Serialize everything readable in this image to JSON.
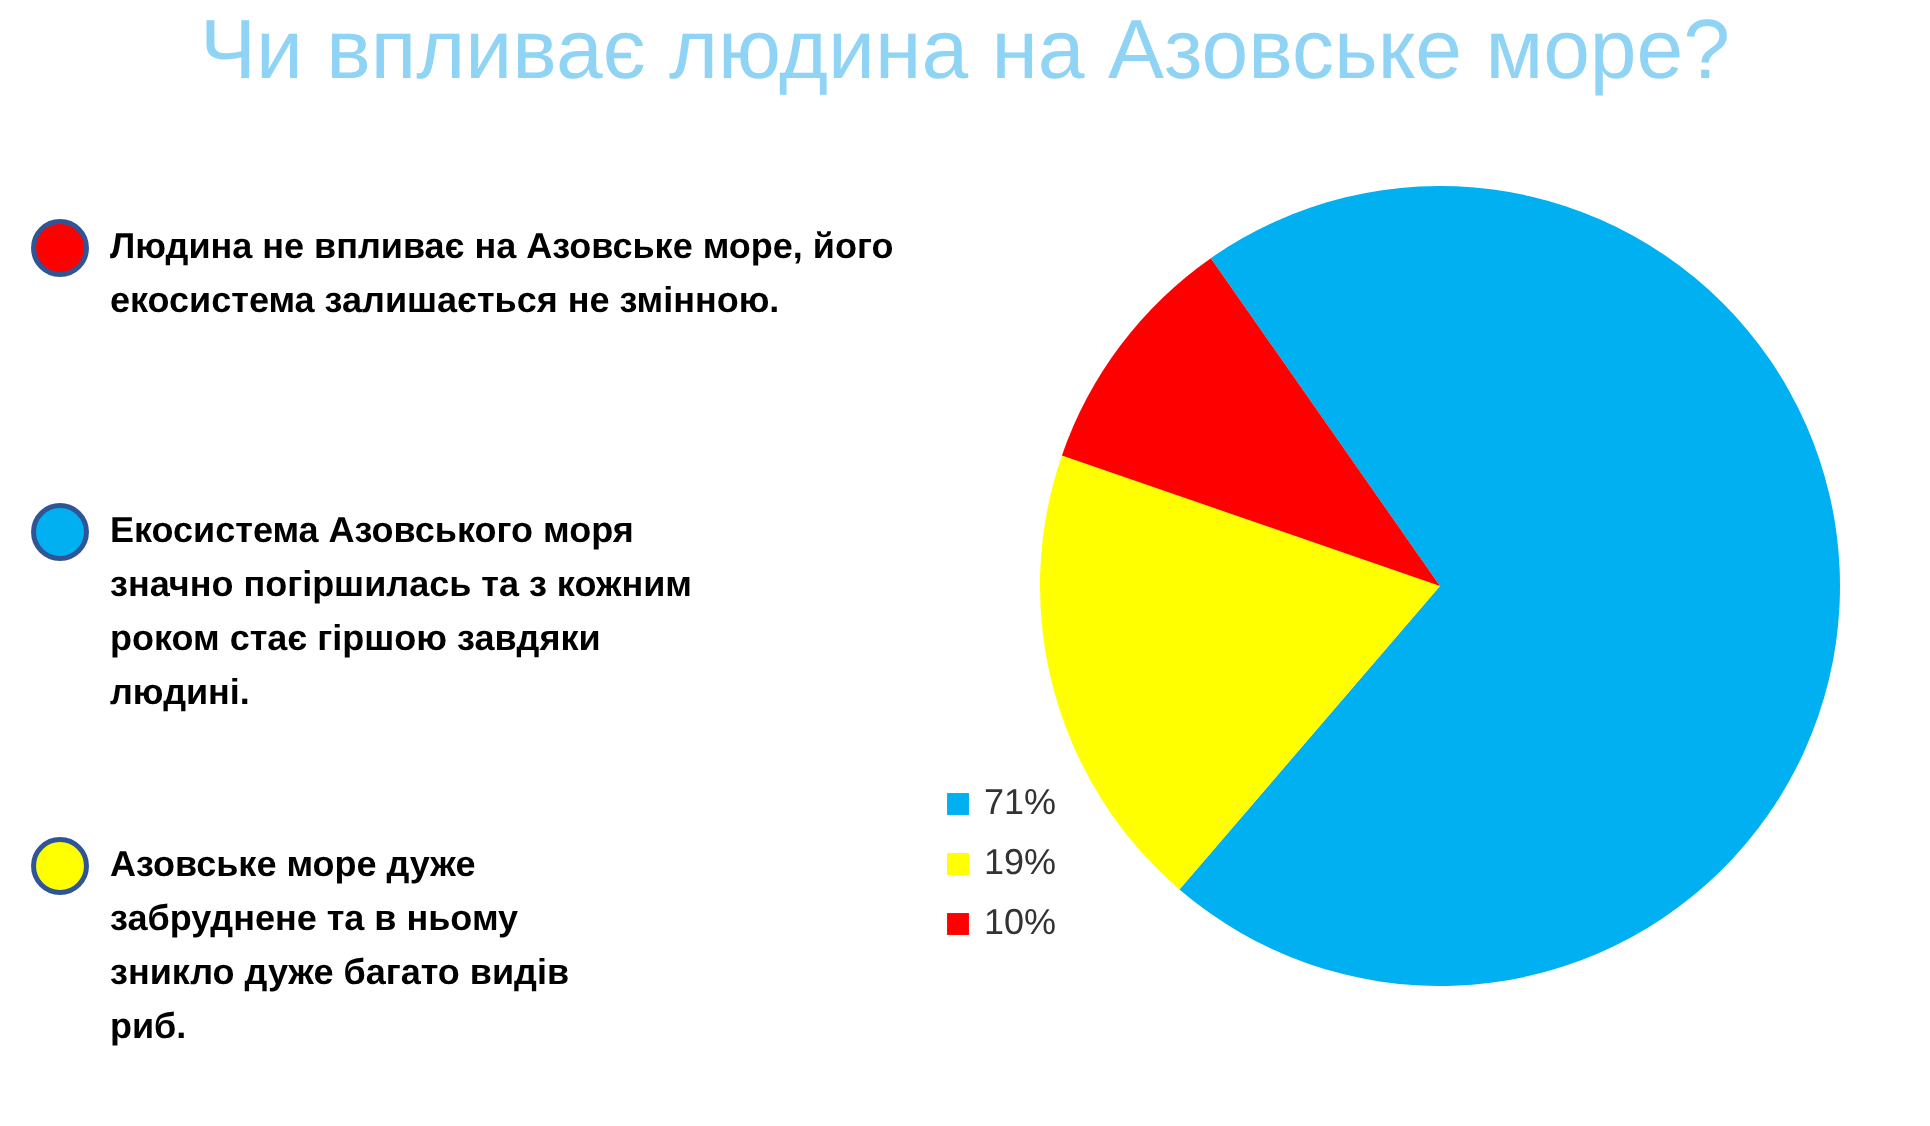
{
  "chart_data": {
    "type": "pie",
    "title": "Чи впливає людина на Азовське море?",
    "categories": [
      "71%",
      "19%",
      "10%"
    ],
    "values": [
      71,
      19,
      10
    ],
    "colors": [
      "#00b0f0",
      "#ffff00",
      "#ff0000"
    ],
    "annotations": [
      "Екосистема Азовського моря значно погіршилась та з кожним роком стає гіршою завдяки людині.",
      "Азовське море дуже забруднене та в ньому зникло дуже багато видів риб.",
      "Людина не впливає на Азовське море, його екосистема залишається не змінною."
    ],
    "legend": "left"
  }
}
